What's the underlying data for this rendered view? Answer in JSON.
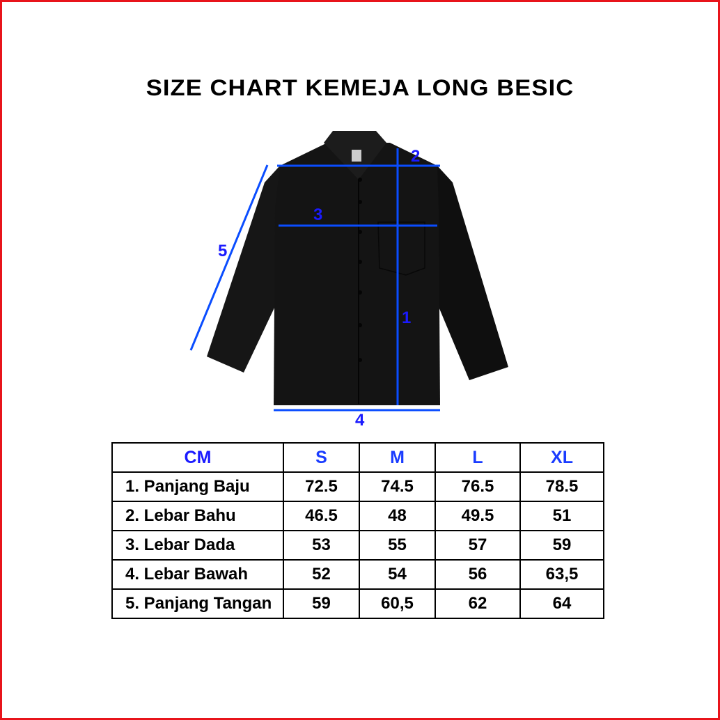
{
  "title": "SIZE CHART KEMEJA LONG BESIC",
  "measure_labels": {
    "1": "1",
    "2": "2",
    "3": "3",
    "4": "4",
    "5": "5"
  },
  "colors": {
    "border": "#e8141b",
    "measure_line": "#0a4dff",
    "label": "#1a1aff",
    "shirt": "#141414"
  },
  "table": {
    "unit": "CM",
    "sizes": [
      "S",
      "M",
      "L",
      "XL"
    ],
    "rows": [
      {
        "label": "1. Panjang Baju",
        "values": [
          "72.5",
          "74.5",
          "76.5",
          "78.5"
        ]
      },
      {
        "label": "2. Lebar Bahu",
        "values": [
          "46.5",
          "48",
          "49.5",
          "51"
        ]
      },
      {
        "label": "3. Lebar Dada",
        "values": [
          "53",
          "55",
          "57",
          "59"
        ]
      },
      {
        "label": "4. Lebar Bawah",
        "values": [
          "52",
          "54",
          "56",
          "63,5"
        ]
      },
      {
        "label": "5. Panjang Tangan",
        "values": [
          "59",
          "60,5",
          "62",
          "64"
        ]
      }
    ]
  }
}
